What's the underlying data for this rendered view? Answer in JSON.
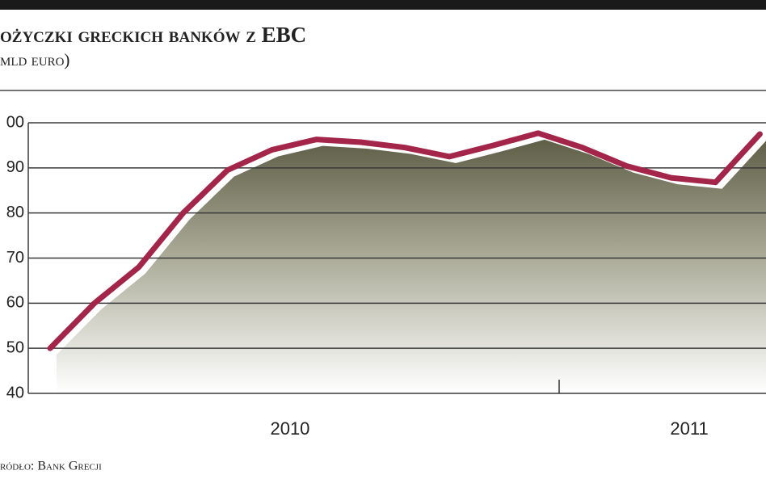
{
  "chart_data": {
    "type": "line",
    "title": "ożyczki greckich banków z EBC",
    "subtitle": "mld euro)",
    "source": "ródło: Bank Grecji",
    "categories": [
      null,
      null,
      null,
      null,
      null,
      "2010",
      null,
      null,
      null,
      null,
      null,
      null,
      null,
      null,
      "2011",
      null,
      null
    ],
    "series": [
      {
        "color": "#a4254a",
        "values": [
          50,
          60,
          68,
          80,
          89.5,
          94,
          96.3,
          95.7,
          94.5,
          92.5,
          95,
          97.7,
          94.5,
          90.4,
          87.8,
          86.8,
          97.5
        ]
      }
    ],
    "ylim": [
      40,
      100
    ],
    "yticks": [
      40,
      50,
      60,
      70,
      80,
      90,
      {
        "value": 100,
        "label": "00"
      }
    ],
    "grid": true
  }
}
